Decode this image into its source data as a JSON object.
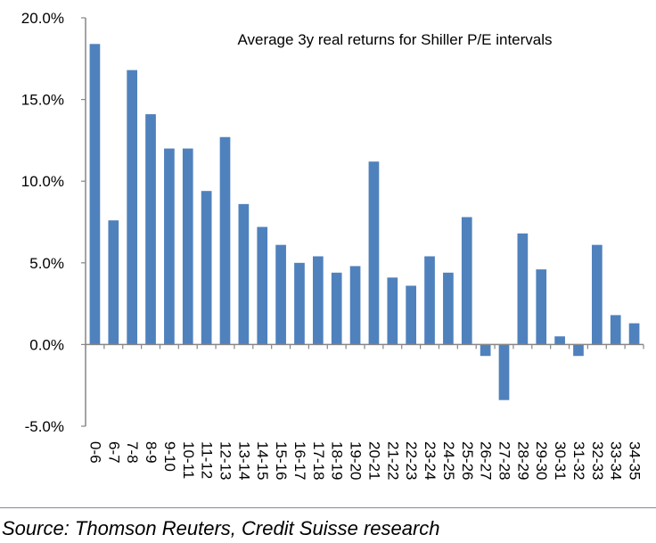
{
  "chart_data": {
    "type": "bar",
    "title": "Average 3y real returns for Shiller P/E intervals",
    "xlabel": "",
    "ylabel": "",
    "categories": [
      "0-6",
      "6-7",
      "7-8",
      "8-9",
      "9-10",
      "10-11",
      "11-12",
      "12-13",
      "13-14",
      "14-15",
      "15-16",
      "16-17",
      "17-18",
      "18-19",
      "19-20",
      "20-21",
      "21-22",
      "22-23",
      "23-24",
      "24-25",
      "25-26",
      "26-27",
      "27-28",
      "28-29",
      "29-30",
      "30-31",
      "31-32",
      "32-33",
      "33-34",
      "34-35"
    ],
    "values": [
      18.4,
      7.6,
      16.8,
      14.1,
      12.0,
      12.0,
      9.4,
      12.7,
      8.6,
      7.2,
      6.1,
      5.0,
      5.4,
      4.4,
      4.8,
      11.2,
      4.1,
      3.6,
      5.4,
      4.4,
      7.8,
      -0.7,
      -3.4,
      6.8,
      4.6,
      0.5,
      -0.7,
      6.1,
      1.8,
      1.3
    ],
    "yticks": [
      "20.0%",
      "15.0%",
      "10.0%",
      "5.0%",
      "0.0%",
      "-5.0%"
    ],
    "ylim": [
      -5,
      20
    ],
    "ytick_step": 5,
    "grid": false,
    "legend": "none",
    "bar_color": "#4f81bd",
    "axis_color": "#868686"
  },
  "source": "Source: Thomson Reuters, Credit Suisse research",
  "colors": {
    "rule": "#7f8aa3",
    "text": "#000000"
  }
}
